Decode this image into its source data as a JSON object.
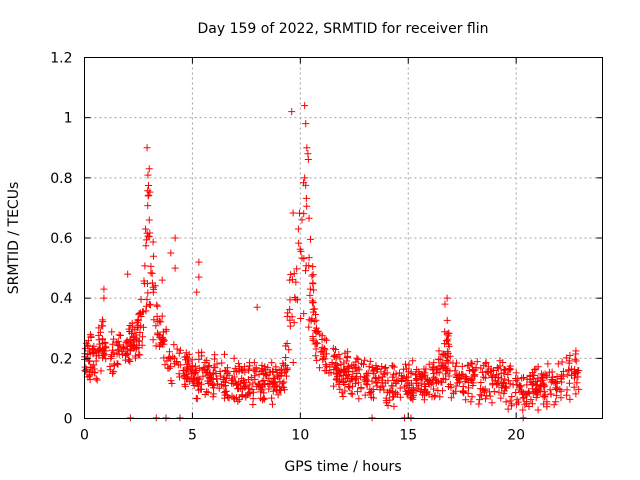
{
  "chart_data": {
    "type": "scatter",
    "title": "Day 159 of 2022, SRMTID for receiver flin",
    "xlabel": "GPS time / hours",
    "ylabel": "SRMTID / TECUs",
    "xlim": [
      0,
      24
    ],
    "ylim": [
      0,
      1.2
    ],
    "xticks": [
      0,
      5,
      10,
      15,
      20
    ],
    "xtick_labels": [
      "0",
      "5",
      "10",
      "15",
      "20"
    ],
    "yticks": [
      0,
      0.2,
      0.4,
      0.6,
      0.8,
      1.0,
      1.2
    ],
    "ytick_labels": [
      "0",
      "0.2",
      "0.4",
      "0.6",
      "0.8",
      "1",
      "1.2"
    ],
    "grid": true,
    "marker_color": "#ff0000",
    "series": [
      {
        "name": "SRMTID",
        "marker": "plus",
        "baseline": [
          [
            0,
            0.2
          ],
          [
            0.5,
            0.2
          ],
          [
            1,
            0.22
          ],
          [
            1.5,
            0.21
          ],
          [
            2,
            0.25
          ],
          [
            2.5,
            0.28
          ],
          [
            3,
            0.3
          ],
          [
            3.5,
            0.28
          ],
          [
            4,
            0.2
          ],
          [
            4.5,
            0.16
          ],
          [
            5,
            0.14
          ],
          [
            6,
            0.13
          ],
          [
            7,
            0.12
          ],
          [
            8,
            0.12
          ],
          [
            9,
            0.11
          ],
          [
            9.5,
            0.15
          ],
          [
            10,
            0.35
          ],
          [
            10.5,
            0.3
          ],
          [
            11,
            0.22
          ],
          [
            11.5,
            0.18
          ],
          [
            12,
            0.15
          ],
          [
            13,
            0.13
          ],
          [
            14,
            0.12
          ],
          [
            15,
            0.11
          ],
          [
            16,
            0.13
          ],
          [
            16.7,
            0.15
          ],
          [
            17,
            0.13
          ],
          [
            18,
            0.12
          ],
          [
            19,
            0.12
          ],
          [
            20,
            0.1
          ],
          [
            20.5,
            0.09
          ],
          [
            21,
            0.1
          ],
          [
            22,
            0.11
          ],
          [
            22.8,
            0.15
          ]
        ],
        "spread": 0.09,
        "bursts": [
          {
            "center": 3.0,
            "width": 0.25,
            "peak": 0.55
          },
          {
            "center": 9.7,
            "width": 0.3,
            "peak": 0.5
          },
          {
            "center": 10.3,
            "width": 0.25,
            "peak": 0.65
          },
          {
            "center": 16.8,
            "width": 0.12,
            "peak": 0.22
          },
          {
            "center": 0.8,
            "width": 0.15,
            "peak": 0.15
          }
        ],
        "highlights": [
          [
            2.9,
            0.9
          ],
          [
            3.0,
            0.83
          ],
          [
            2.95,
            0.74
          ],
          [
            3.0,
            0.66
          ],
          [
            9.6,
            1.02
          ],
          [
            10.2,
            1.04
          ],
          [
            10.25,
            0.98
          ],
          [
            10.3,
            0.9
          ],
          [
            10.35,
            0.88
          ],
          [
            10.2,
            0.8
          ],
          [
            4.2,
            0.6
          ],
          [
            4.2,
            0.5
          ],
          [
            5.3,
            0.52
          ],
          [
            5.3,
            0.47
          ],
          [
            5.2,
            0.42
          ],
          [
            8.0,
            0.37
          ],
          [
            16.8,
            0.4
          ],
          [
            16.7,
            0.38
          ],
          [
            2.0,
            0.48
          ],
          [
            3.6,
            0.46
          ],
          [
            0.9,
            0.43
          ],
          [
            0.9,
            0.4
          ],
          [
            4.0,
            0.55
          ]
        ],
        "gaps": [
          [
            2.1,
            2.15
          ],
          [
            3.3,
            3.35
          ],
          [
            3.75,
            3.8
          ],
          [
            4.4,
            4.45
          ],
          [
            13.3,
            13.35
          ],
          [
            14.8,
            14.85
          ],
          [
            15.1,
            15.15
          ],
          [
            20.3,
            20.35
          ]
        ],
        "x_range": [
          0,
          22.9
        ],
        "count": 1300
      }
    ]
  }
}
